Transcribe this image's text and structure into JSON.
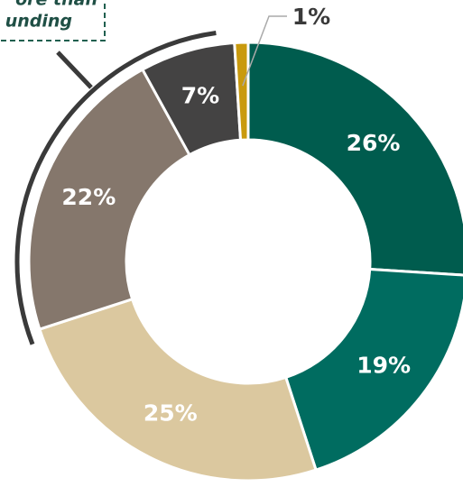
{
  "chart_data": {
    "type": "donut",
    "values": [
      26,
      19,
      25,
      22,
      7,
      1
    ],
    "value_labels": [
      "26%",
      "19%",
      "25%",
      "22%",
      "7%",
      "1%"
    ],
    "colors": [
      "#005c4e",
      "#006c60",
      "#dbc89f",
      "#85776c",
      "#444343",
      "#c99a0e"
    ],
    "annotation": [
      "ore than",
      "unding"
    ]
  }
}
